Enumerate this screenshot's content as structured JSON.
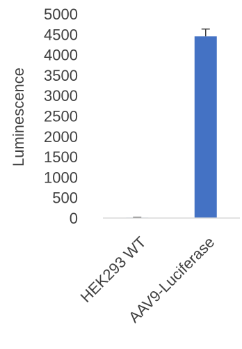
{
  "chart_data": {
    "type": "bar",
    "title": "",
    "xlabel": "",
    "ylabel": "Luminescence",
    "categories": [
      "HEK293 WT",
      "AAV9-Luciferase"
    ],
    "series": [
      {
        "values": [
          10,
          4450
        ],
        "error": [
          5,
          180
        ]
      }
    ],
    "ylim": [
      0,
      5000
    ],
    "yticks": [
      0,
      500,
      1000,
      1500,
      2000,
      2500,
      3000,
      3500,
      4000,
      4500,
      5000
    ],
    "ytick_labels": [
      "0",
      "500",
      "1000",
      "1500",
      "2000",
      "2500",
      "3000",
      "3500",
      "4000",
      "4500",
      "5000"
    ],
    "grid": false,
    "legend": "none",
    "bar_color": "#4472C4",
    "axis_color": "#D9D9D9",
    "error_bar_color": "#404040"
  }
}
